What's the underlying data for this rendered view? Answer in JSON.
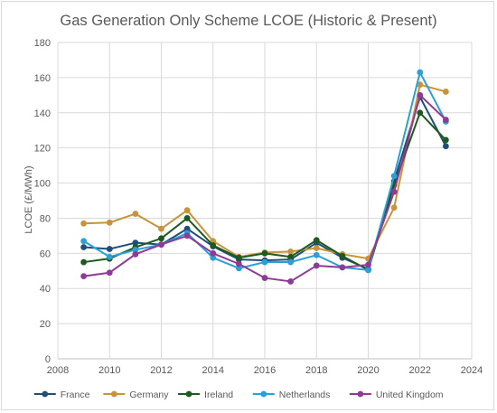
{
  "chart_data": {
    "type": "line",
    "title": "Gas Generation Only Scheme LCOE (Historic & Present)",
    "xlabel": "",
    "ylabel": "LCOE (£/MWh)",
    "xlim": [
      2008,
      2024
    ],
    "ylim": [
      0,
      180
    ],
    "x_ticks": [
      2008,
      2010,
      2012,
      2014,
      2016,
      2018,
      2020,
      2022,
      2024
    ],
    "y_ticks": [
      0,
      20,
      40,
      60,
      80,
      100,
      120,
      140,
      160,
      180
    ],
    "grid": true,
    "legend_position": "bottom",
    "x": [
      2009,
      2010,
      2011,
      2012,
      2013,
      2014,
      2015,
      2016,
      2017,
      2018,
      2019,
      2020,
      2021,
      2022,
      2023
    ],
    "series": [
      {
        "name": "France",
        "color": "#1f4e79",
        "values": [
          63.5,
          62.5,
          66,
          65,
          74,
          64,
          56.5,
          56,
          56.5,
          66,
          57.5,
          51,
          101,
          149,
          121
        ]
      },
      {
        "name": "Germany",
        "color": "#c9933a",
        "values": [
          77,
          77.5,
          82.5,
          74,
          84.5,
          67,
          58,
          60.5,
          61,
          63,
          59.5,
          57,
          86,
          156,
          152
        ]
      },
      {
        "name": "Ireland",
        "color": "#1e5a1e",
        "values": [
          55,
          57,
          63.5,
          68.5,
          80,
          64.5,
          57.5,
          60,
          58,
          67.5,
          58.5,
          50.5,
          99,
          140,
          124.5
        ]
      },
      {
        "name": "Netherlands",
        "color": "#2a9fd8",
        "values": [
          67,
          58,
          62,
          65,
          71.5,
          57.5,
          51.5,
          55,
          55,
          59,
          52,
          50.5,
          104,
          163,
          135
        ]
      },
      {
        "name": "United Kingdom",
        "color": "#8e3a96",
        "values": [
          47,
          49,
          59.5,
          65,
          70,
          60,
          54,
          46,
          44,
          53,
          52,
          53.5,
          95,
          150,
          136
        ]
      }
    ]
  }
}
